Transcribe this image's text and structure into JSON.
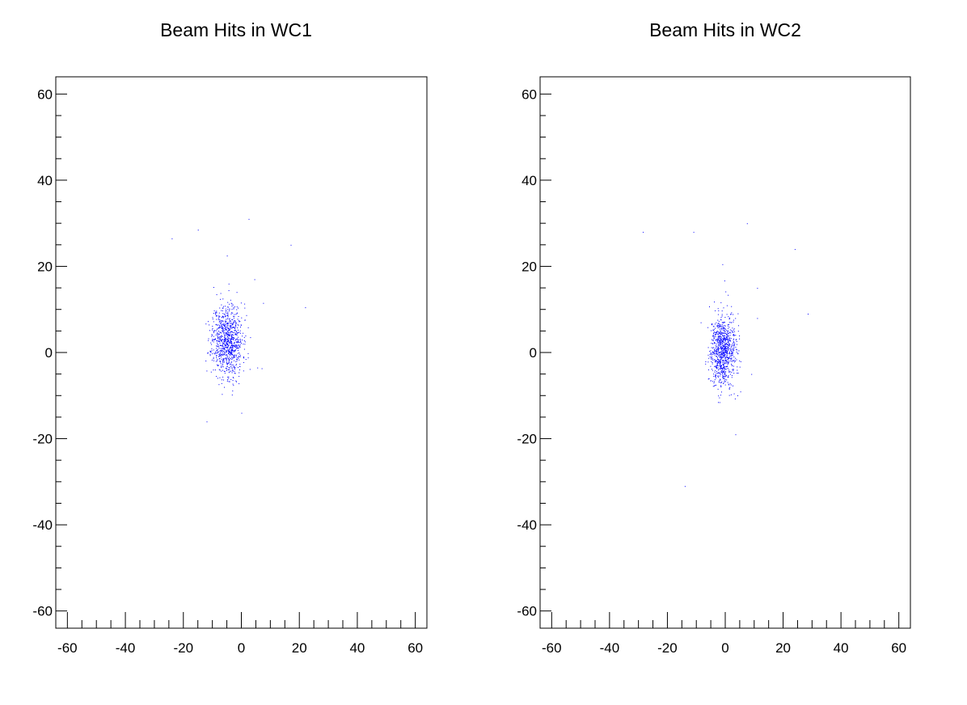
{
  "chart_data": [
    {
      "type": "scatter",
      "title": "Beam Hits in WC1",
      "xlabel": "",
      "ylabel": "",
      "xlim": [
        -64,
        64
      ],
      "ylim": [
        -64,
        64
      ],
      "xticks": [
        -60,
        -40,
        -20,
        0,
        20,
        40,
        60
      ],
      "yticks": [
        -60,
        -40,
        -20,
        0,
        20,
        40,
        60
      ],
      "grid": false,
      "marker_color": "#0000ff",
      "cluster": {
        "center": [
          -5,
          3
        ],
        "spread": [
          2.6,
          4.2
        ],
        "count": 900,
        "seed": 11
      },
      "outliers": [
        [
          -24,
          26.5
        ],
        [
          -15,
          28.5
        ],
        [
          2.5,
          31
        ],
        [
          17,
          25
        ],
        [
          -5,
          22.5
        ],
        [
          4.5,
          17
        ],
        [
          7.5,
          11.5
        ],
        [
          22,
          10.5
        ],
        [
          5.5,
          -3.5
        ],
        [
          -12,
          -16
        ],
        [
          0,
          -14
        ],
        [
          -6,
          -8
        ]
      ]
    },
    {
      "type": "scatter",
      "title": "Beam Hits in WC2",
      "xlabel": "",
      "ylabel": "",
      "xlim": [
        -64,
        64
      ],
      "ylim": [
        -64,
        64
      ],
      "xticks": [
        -60,
        -40,
        -20,
        0,
        20,
        40,
        60
      ],
      "yticks": [
        -60,
        -40,
        -20,
        0,
        20,
        40,
        60
      ],
      "grid": false,
      "marker_color": "#0000ff",
      "cluster": {
        "center": [
          -1,
          0.5
        ],
        "spread": [
          2.2,
          4.0
        ],
        "count": 900,
        "seed": 29
      },
      "outliers": [
        [
          -28.5,
          28
        ],
        [
          -11,
          28
        ],
        [
          7.5,
          30
        ],
        [
          24,
          24
        ],
        [
          -1,
          20.5
        ],
        [
          11,
          15
        ],
        [
          28.5,
          9
        ],
        [
          -8.5,
          7
        ],
        [
          11,
          8
        ],
        [
          9,
          -5
        ],
        [
          3.5,
          -19
        ],
        [
          -14,
          -31
        ]
      ]
    }
  ]
}
